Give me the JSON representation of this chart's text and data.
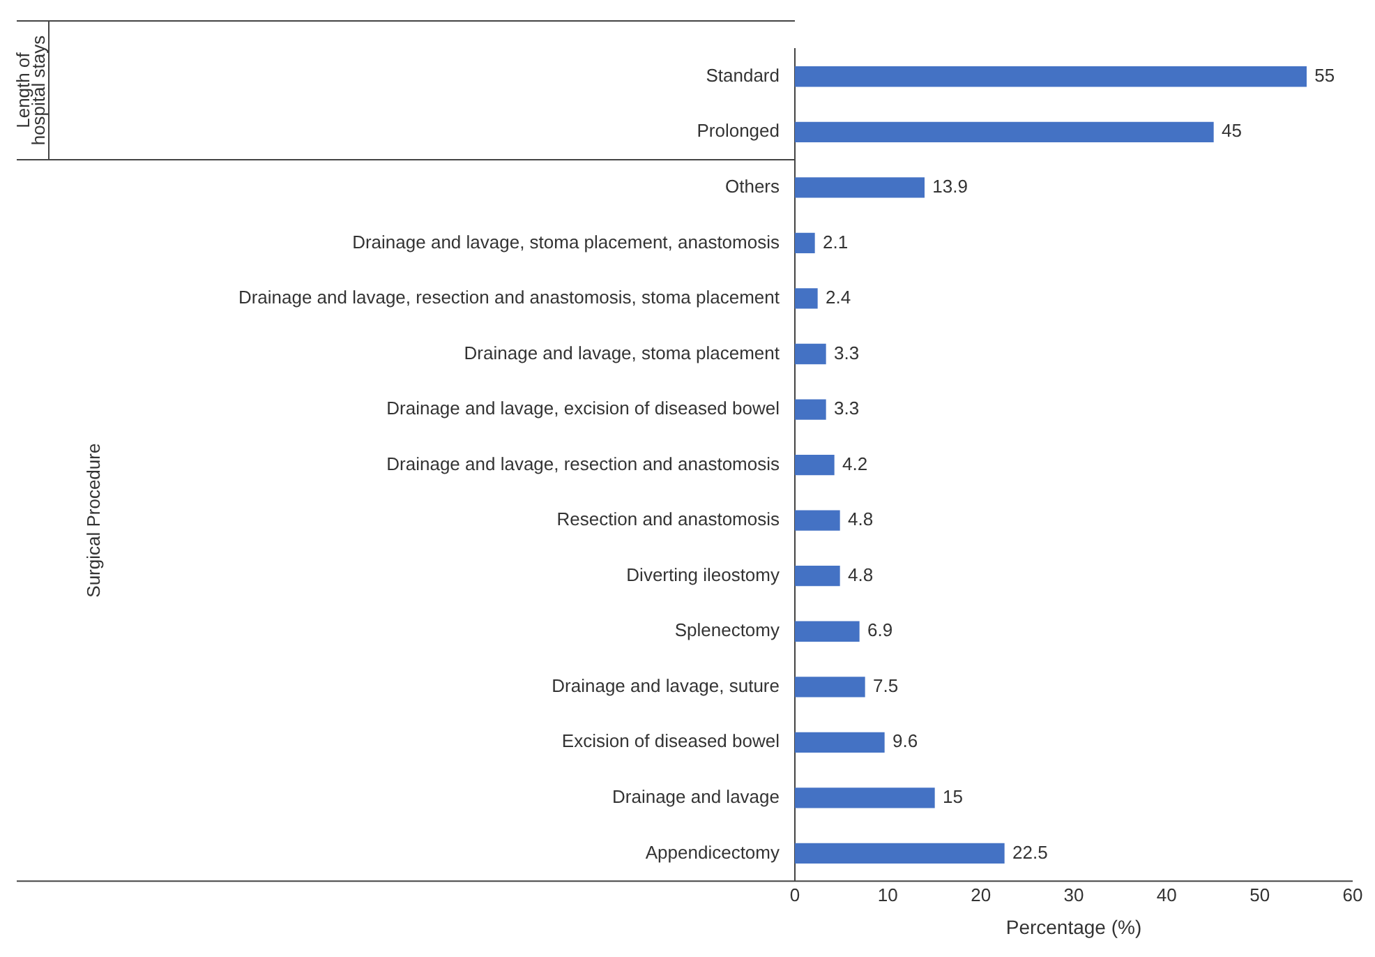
{
  "chart_data": {
    "type": "bar",
    "orientation": "horizontal",
    "xlabel": "Percentage (%)",
    "categories": [
      "Standard",
      "Prolonged",
      "Others",
      "Drainage and lavage, stoma placement, anastomosis",
      "Drainage and lavage, resection and anastomosis, stoma placement",
      "Drainage and lavage, stoma placement",
      "Drainage and lavage, excision of diseased bowel",
      "Drainage and lavage, resection and anastomosis",
      "Resection and anastomosis",
      "Diverting ileostomy",
      "Splenectomy",
      "Drainage and lavage, suture",
      "Excision of diseased bowel",
      "Drainage and lavage",
      "Appendicectomy"
    ],
    "values": [
      55,
      45,
      13.9,
      2.1,
      2.4,
      3.3,
      3.3,
      4.2,
      4.8,
      4.8,
      6.9,
      7.5,
      9.6,
      15,
      22.5
    ],
    "color": "#4472c4",
    "data_labels": true,
    "xlim": [
      0,
      60
    ],
    "xticks": [
      0,
      10,
      20,
      30,
      40,
      50,
      60
    ],
    "grid": false,
    "legend": false,
    "annotations": [
      "Length of hospital stays",
      "Surgical Procedure"
    ]
  }
}
